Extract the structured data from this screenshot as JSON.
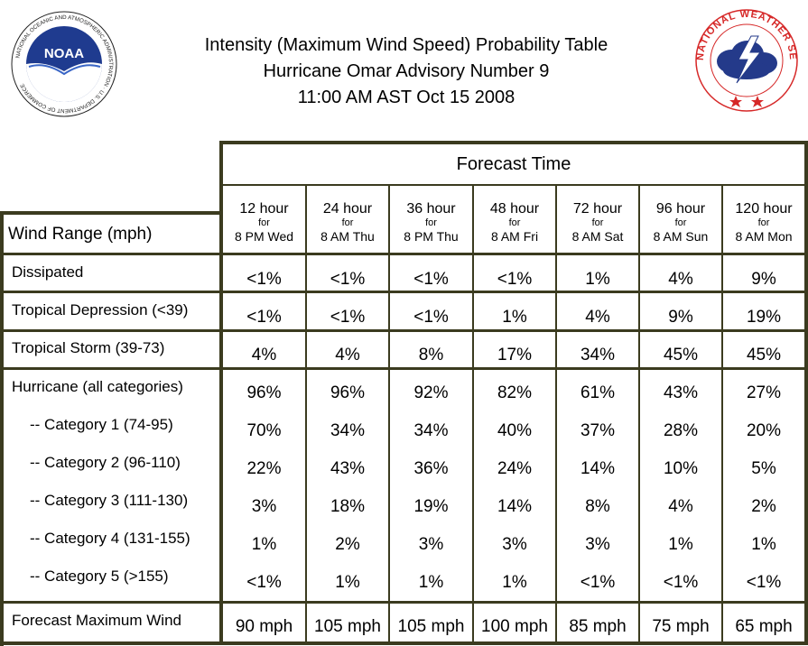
{
  "header": {
    "title_line1": "Intensity (Maximum Wind Speed) Probability Table",
    "title_line2": "Hurricane Omar Advisory Number 9",
    "title_line3": "11:00 AM AST Oct 15 2008"
  },
  "logos": {
    "noaa_text": "NOAA",
    "noaa_ring": "NATIONAL OCEANIC AND ATMOSPHERIC ADMINISTRATION · U.S. DEPARTMENT OF COMMERCE",
    "nws_ring": "NATIONAL WEATHER SERVICE"
  },
  "table": {
    "forecast_time_label": "Forecast Time",
    "wind_range_label": "Wind Range (mph)",
    "columns": [
      {
        "hour": "12 hour",
        "for": "for",
        "time": "8 PM Wed"
      },
      {
        "hour": "24 hour",
        "for": "for",
        "time": "8 AM Thu"
      },
      {
        "hour": "36 hour",
        "for": "for",
        "time": "8 PM Thu"
      },
      {
        "hour": "48 hour",
        "for": "for",
        "time": "8 AM Fri"
      },
      {
        "hour": "72 hour",
        "for": "for",
        "time": "8 AM Sat"
      },
      {
        "hour": "96 hour",
        "for": "for",
        "time": "8 AM Sun"
      },
      {
        "hour": "120 hour",
        "for": "for",
        "time": "8 AM Mon"
      }
    ],
    "rows": [
      {
        "label": "Dissipated",
        "values": [
          "<1%",
          "<1%",
          "<1%",
          "<1%",
          "1%",
          "4%",
          "9%"
        ]
      },
      {
        "label": "Tropical Depression (<39)",
        "values": [
          "<1%",
          "<1%",
          "<1%",
          "1%",
          "4%",
          "9%",
          "19%"
        ]
      },
      {
        "label": "Tropical Storm (39-73)",
        "values": [
          "4%",
          "4%",
          "8%",
          "17%",
          "34%",
          "45%",
          "45%"
        ]
      },
      {
        "label": "Hurricane (all categories)",
        "values": [
          "96%",
          "96%",
          "92%",
          "82%",
          "61%",
          "43%",
          "27%"
        ]
      },
      {
        "label": "-- Category 1 (74-95)",
        "values": [
          "70%",
          "34%",
          "34%",
          "40%",
          "37%",
          "28%",
          "20%"
        ]
      },
      {
        "label": "-- Category 2 (96-110)",
        "values": [
          "22%",
          "43%",
          "36%",
          "24%",
          "14%",
          "10%",
          "5%"
        ]
      },
      {
        "label": "-- Category 3 (111-130)",
        "values": [
          "3%",
          "18%",
          "19%",
          "14%",
          "8%",
          "4%",
          "2%"
        ]
      },
      {
        "label": "-- Category 4 (131-155)",
        "values": [
          "1%",
          "2%",
          "3%",
          "3%",
          "3%",
          "1%",
          "1%"
        ]
      },
      {
        "label": "-- Category 5 (>155)",
        "values": [
          "<1%",
          "1%",
          "1%",
          "1%",
          "<1%",
          "<1%",
          "<1%"
        ]
      }
    ],
    "max_wind": {
      "label": "Forecast Maximum Wind",
      "values": [
        "90 mph",
        "105 mph",
        "105 mph",
        "100 mph",
        "85 mph",
        "75 mph",
        "65 mph"
      ]
    }
  },
  "colors": {
    "grid": "#3b3b1f",
    "noaa_blue": "#1f3b8f",
    "nws_red": "#d62828",
    "nws_navy": "#243a8a"
  }
}
